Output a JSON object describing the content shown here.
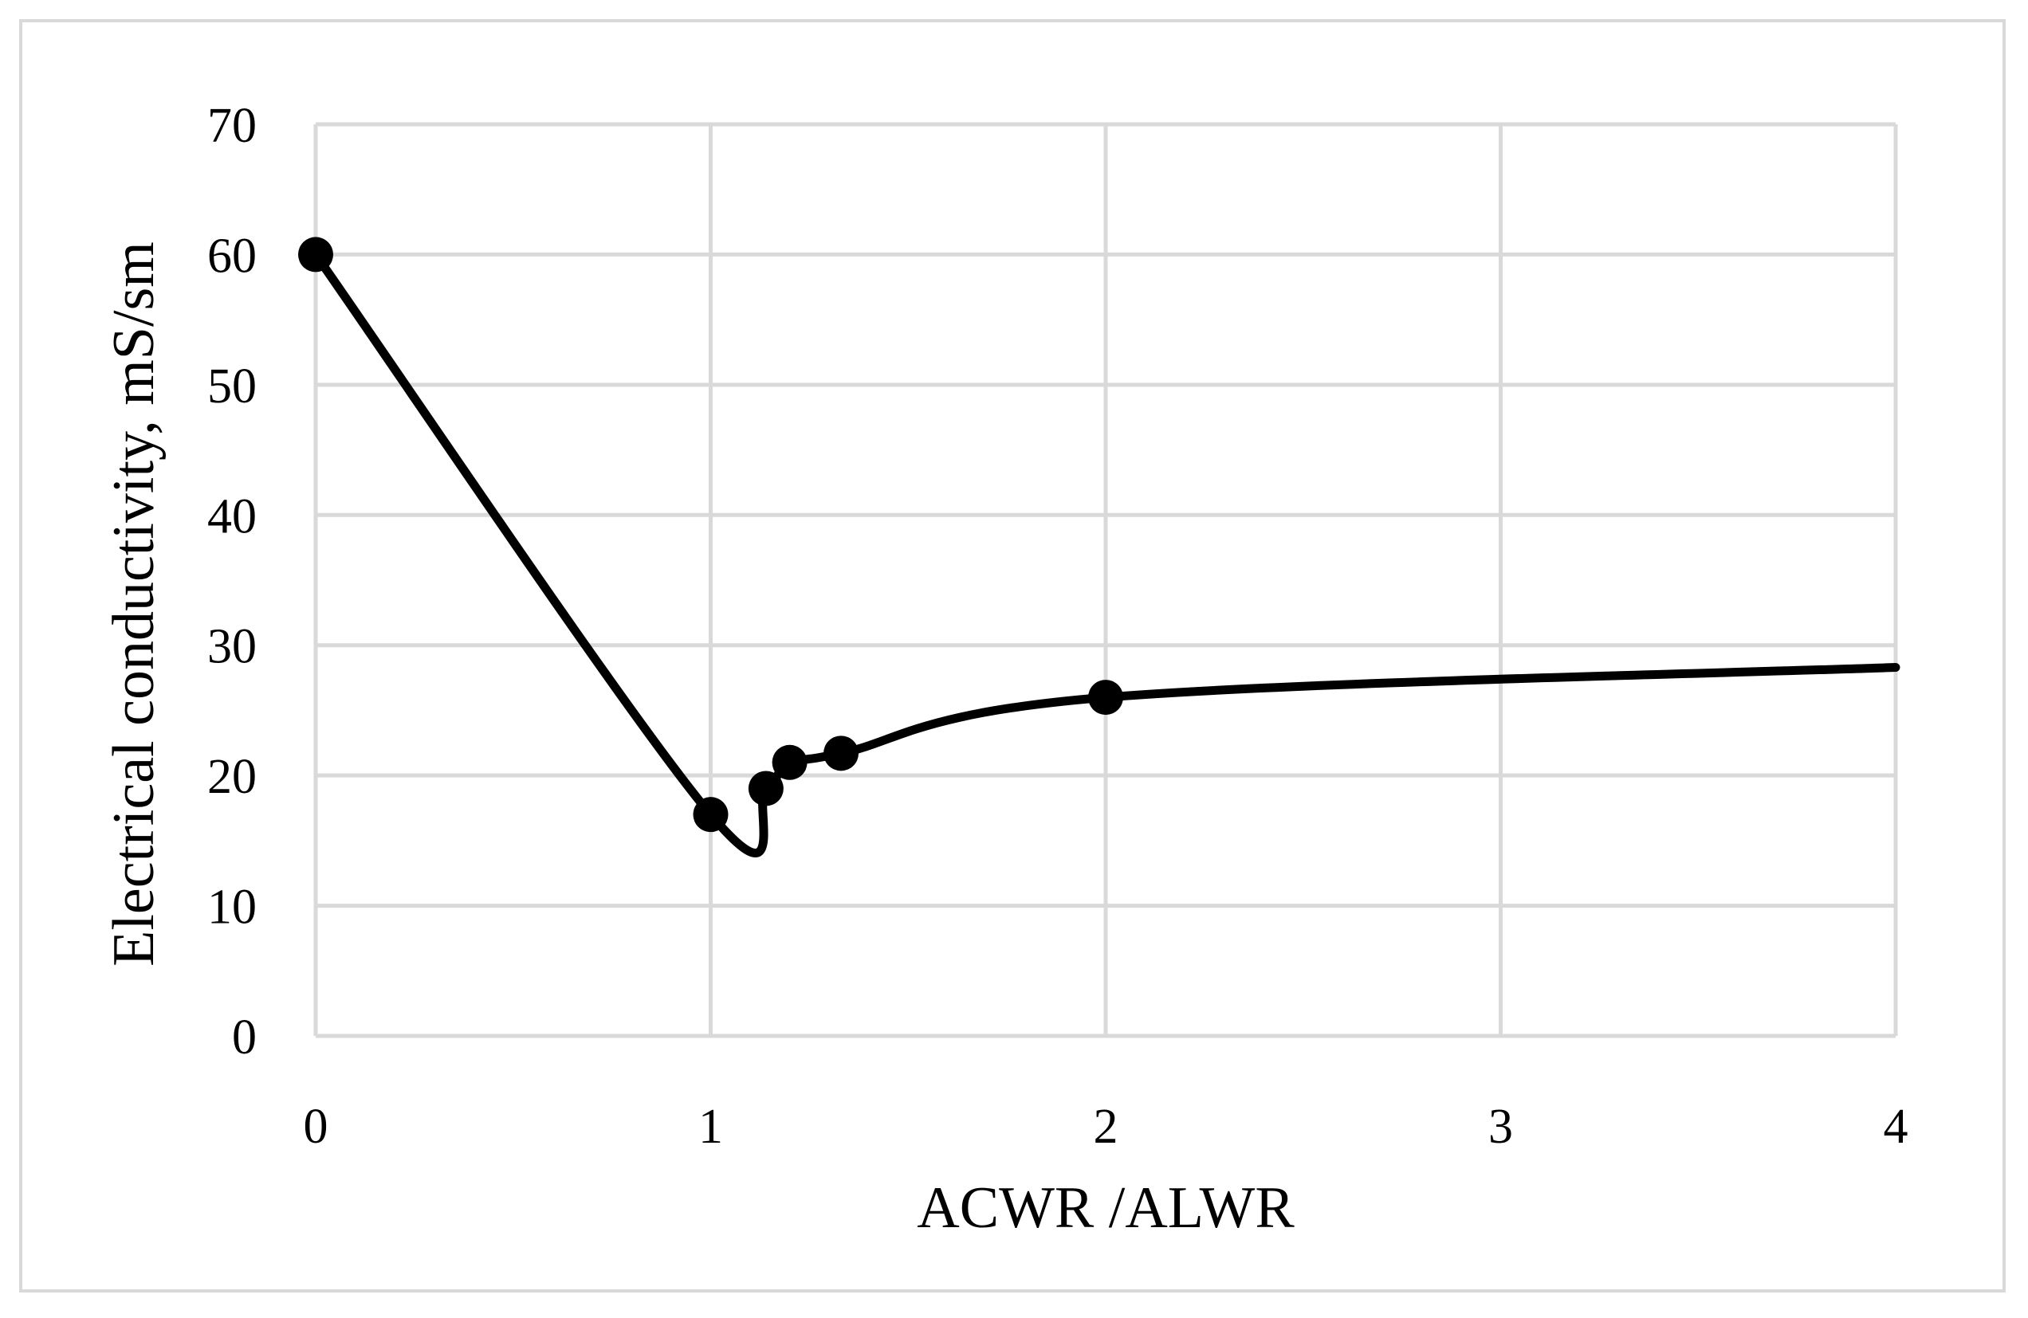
{
  "chart_data": {
    "type": "scatter",
    "title": "",
    "xlabel": "ACWR /ALWR",
    "ylabel": "Electrical conductivity, mS/sm",
    "xlim": [
      0,
      4
    ],
    "ylim": [
      0,
      70
    ],
    "x_ticks": [
      "0",
      "1",
      "2",
      "3",
      "4"
    ],
    "y_ticks": [
      "0",
      "10",
      "20",
      "30",
      "40",
      "50",
      "60",
      "70"
    ],
    "grid": true,
    "legend": "none",
    "series": [
      {
        "points": [
          {
            "x": 0,
            "y": 60
          },
          {
            "x": 1,
            "y": 17
          },
          {
            "x": 1.14,
            "y": 19
          },
          {
            "x": 1.2,
            "y": 21
          },
          {
            "x": 1.33,
            "y": 21.7
          },
          {
            "x": 2,
            "y": 26
          }
        ],
        "trend_end": {
          "x": 4,
          "y": 28.3
        },
        "color": "#000000"
      }
    ]
  }
}
